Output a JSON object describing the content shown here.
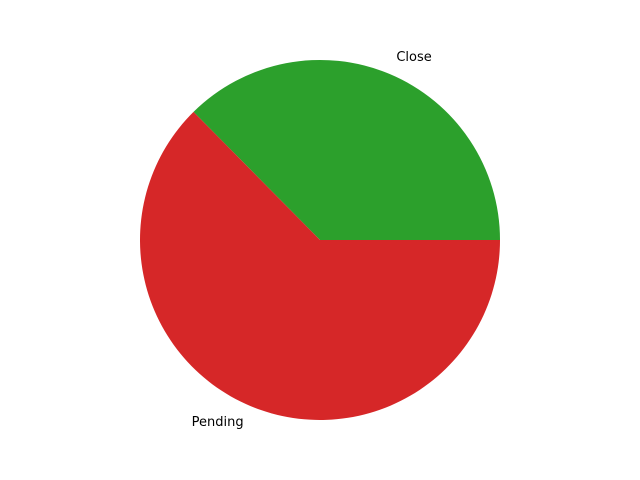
{
  "chart_data": {
    "type": "pie",
    "title": "",
    "slices": [
      {
        "label": "Close",
        "value": 37.4,
        "color": "#2ca02c"
      },
      {
        "label": "Pending",
        "value": 62.6,
        "color": "#d62728"
      }
    ],
    "start_angle_deg": 0,
    "direction": "counterclockwise",
    "legend": "none"
  }
}
